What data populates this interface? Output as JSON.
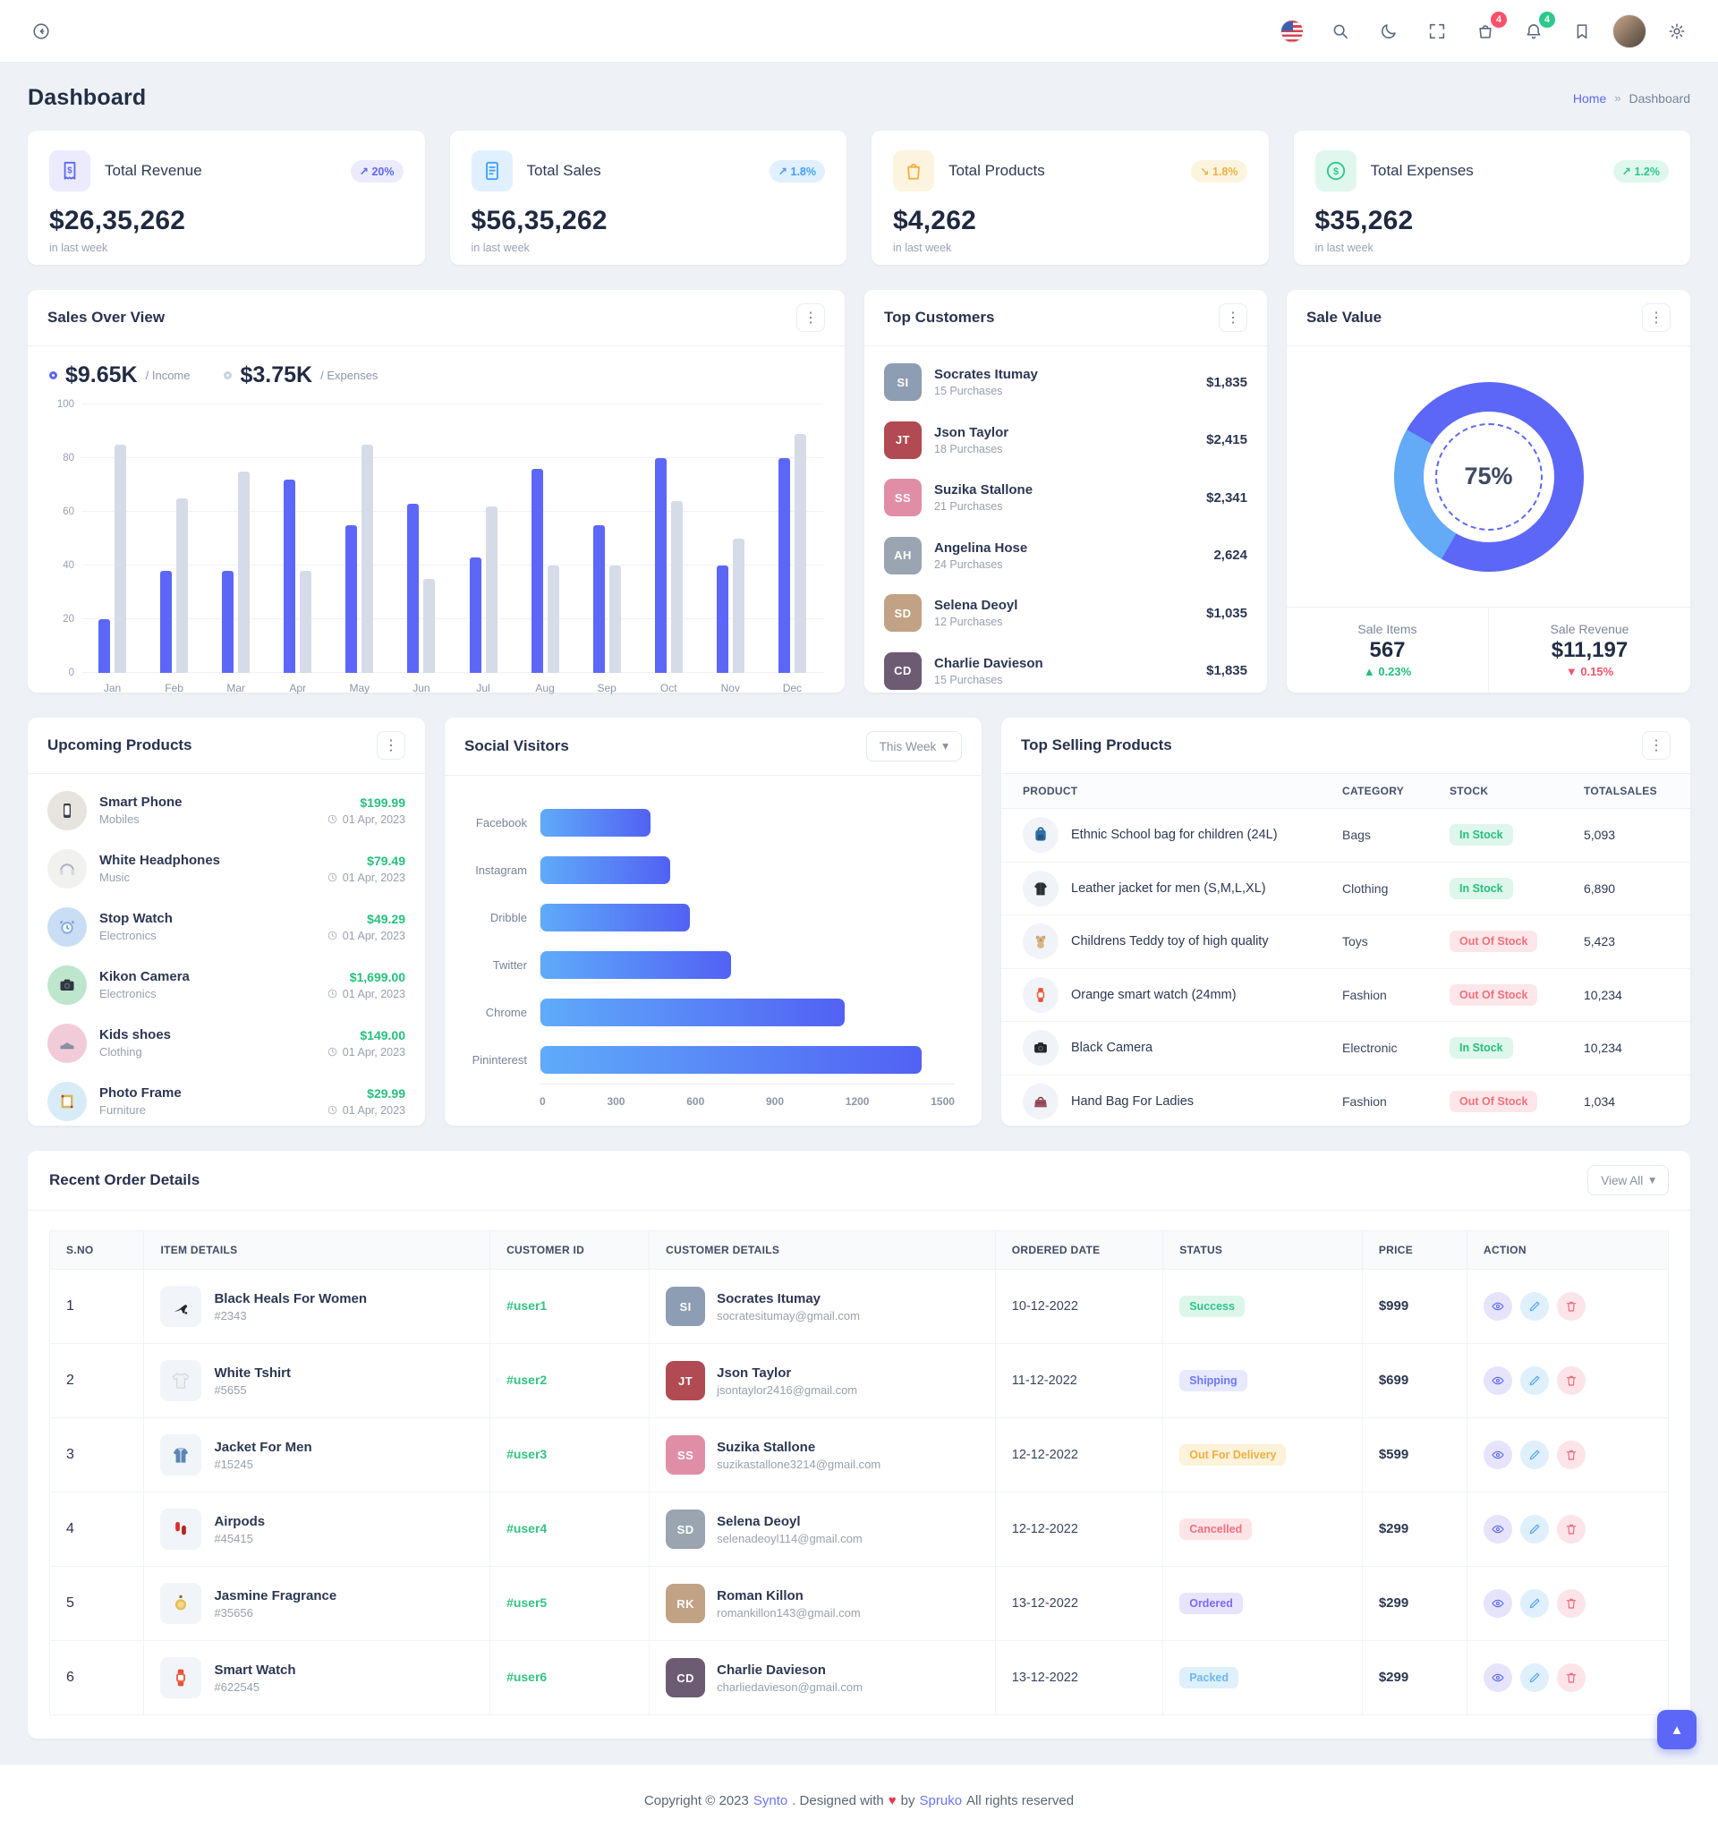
{
  "ui": {
    "icons": {
      "more": "⋮",
      "chevron_down": "▾",
      "heart": "♥",
      "arrow_up": "▲",
      "arrow_down": "▼",
      "trend_up": "↗",
      "trend_down": "↘",
      "breadcrumb_sep": "»",
      "scroll_top": "▲"
    }
  },
  "header": {
    "cart_badge": "4",
    "bell_badge": "4"
  },
  "page": {
    "title": "Dashboard",
    "breadcrumb": [
      "Home",
      "Dashboard"
    ]
  },
  "stats": [
    {
      "title": "Total Revenue",
      "badge": "20%",
      "trend": "up",
      "value": "$26,35,262",
      "caption": "in last week",
      "icon": "receipt-dollar",
      "theme": "indigo",
      "color": "#5c67f7"
    },
    {
      "title": "Total Sales",
      "badge": "1.8%",
      "trend": "up",
      "value": "$56,35,262",
      "caption": "in last week",
      "icon": "invoice",
      "theme": "blue",
      "color": "#41a0f6"
    },
    {
      "title": "Total Products",
      "badge": "1.8%",
      "trend": "down",
      "value": "$4,262",
      "caption": "in last week",
      "icon": "shopping-bag",
      "theme": "yellow",
      "color": "#f0b23f"
    },
    {
      "title": "Total Expenses",
      "badge": "1.2%",
      "trend": "up",
      "value": "$35,262",
      "caption": "in last week",
      "icon": "dollar-circle",
      "theme": "green",
      "color": "#2bc98a"
    }
  ],
  "sales_overview": {
    "title": "Sales Over View",
    "legend": [
      {
        "value": "$9.65K",
        "label": "/ Income"
      },
      {
        "value": "$3.75K",
        "label": "/ Expenses"
      }
    ]
  },
  "chart_data": [
    {
      "type": "bar",
      "title": "Sales Over View",
      "categories": [
        "Jan",
        "Feb",
        "Mar",
        "Apr",
        "May",
        "Jun",
        "Jul",
        "Aug",
        "Sep",
        "Oct",
        "Nov",
        "Dec"
      ],
      "series": [
        {
          "name": "Income",
          "color": "#5c67f7",
          "values": [
            20,
            38,
            38,
            72,
            55,
            63,
            43,
            76,
            55,
            80,
            40,
            80
          ]
        },
        {
          "name": "Expenses",
          "color": "#d5dbe7",
          "values": [
            85,
            65,
            75,
            38,
            85,
            35,
            62,
            40,
            40,
            64,
            50,
            89
          ]
        }
      ],
      "ylim": [
        0,
        100
      ],
      "yticks": [
        0,
        20,
        40,
        60,
        80,
        100
      ],
      "grid": true,
      "legend_position": "top-left"
    },
    {
      "type": "bar",
      "orientation": "horizontal",
      "title": "Social Visitors",
      "categories": [
        "Facebook",
        "Instagram",
        "Dribble",
        "Twitter",
        "Chrome",
        "Pininterest"
      ],
      "values": [
        400,
        470,
        540,
        690,
        1100,
        1380
      ],
      "xlim": [
        0,
        1500
      ],
      "xticks": [
        0,
        300,
        600,
        900,
        1200,
        1500
      ],
      "bar_gradient": [
        "#5fabf9",
        "#5261f3"
      ]
    },
    {
      "type": "donut",
      "title": "Sale Value",
      "center_label": "75%",
      "slices": [
        {
          "name": "primary",
          "value": 75,
          "color": "#5c67f7"
        },
        {
          "name": "secondary",
          "value": 25,
          "color": "#63aaf7"
        }
      ],
      "segments": [
        {
          "from": 0,
          "to": 210,
          "color": "#5c67f7"
        },
        {
          "from": 210,
          "to": 300,
          "color": "#63aaf7"
        },
        {
          "from": 300,
          "to": 360,
          "color": "#5c67f7"
        }
      ]
    }
  ],
  "top_customers": {
    "title": "Top Customers",
    "items": [
      {
        "name": "Socrates Itumay",
        "purchases": "15 Purchases",
        "amount": "$1,835"
      },
      {
        "name": "Json Taylor",
        "purchases": "18 Purchases",
        "amount": "$2,415"
      },
      {
        "name": "Suzika Stallone",
        "purchases": "21 Purchases",
        "amount": "$2,341"
      },
      {
        "name": "Angelina Hose",
        "purchases": "24 Purchases",
        "amount": "2,624"
      },
      {
        "name": "Selena Deoyl",
        "purchases": "12 Purchases",
        "amount": "$1,035"
      },
      {
        "name": "Charlie Davieson",
        "purchases": "15 Purchases",
        "amount": "$1,835"
      }
    ]
  },
  "sale_value": {
    "title": "Sale Value",
    "percent": "75%",
    "stats": [
      {
        "label": "Sale Items",
        "value": "567",
        "delta": "0.23%",
        "trend": "up"
      },
      {
        "label": "Sale Revenue",
        "value": "$11,197",
        "delta": "0.15%",
        "trend": "down"
      }
    ]
  },
  "upcoming_products": {
    "title": "Upcoming Products",
    "items": [
      {
        "name": "Smart Phone",
        "category": "Mobiles",
        "price": "$199.99",
        "date": "01 Apr, 2023",
        "icon": "smartphone",
        "icon_bg": "#e7e3de"
      },
      {
        "name": "White Headphones",
        "category": "Music",
        "price": "$79.49",
        "date": "01 Apr, 2023",
        "icon": "headphones",
        "icon_bg": "#f1f1ef"
      },
      {
        "name": "Stop Watch",
        "category": "Electronics",
        "price": "$49.29",
        "date": "01 Apr, 2023",
        "icon": "alarm-clock",
        "icon_bg": "#c9ddf5"
      },
      {
        "name": "Kikon Camera",
        "category": "Electronics",
        "price": "$1,699.00",
        "date": "01 Apr, 2023",
        "icon": "camera",
        "icon_bg": "#bde6cd"
      },
      {
        "name": "Kids shoes",
        "category": "Clothing",
        "price": "$149.00",
        "date": "01 Apr, 2023",
        "icon": "shoes",
        "icon_bg": "#f2cbd8"
      },
      {
        "name": "Photo Frame",
        "category": "Furniture",
        "price": "$29.99",
        "date": "01 Apr, 2023",
        "icon": "photo-frame",
        "icon_bg": "#d8ecf7"
      }
    ]
  },
  "social_visitors": {
    "title": "Social Visitors",
    "filter_label": "This Week"
  },
  "top_selling": {
    "title": "Top Selling Products",
    "columns": [
      "PRODUCT",
      "CATEGORY",
      "STOCK",
      "TOTALSALES"
    ],
    "rows": [
      {
        "product": "Ethnic School bag for children (24L)",
        "category": "Bags",
        "stock": "In Stock",
        "stock_state": "in",
        "sales": "5,093",
        "icon": "school-bag"
      },
      {
        "product": "Leather jacket for men (S,M,L,XL)",
        "category": "Clothing",
        "stock": "In Stock",
        "stock_state": "in",
        "sales": "6,890",
        "icon": "jacket-dark"
      },
      {
        "product": "Childrens Teddy toy of high quality",
        "category": "Toys",
        "stock": "Out Of Stock",
        "stock_state": "out",
        "sales": "5,423",
        "icon": "teddy"
      },
      {
        "product": "Orange smart watch (24mm)",
        "category": "Fashion",
        "stock": "Out Of Stock",
        "stock_state": "out",
        "sales": "10,234",
        "icon": "smart-watch"
      },
      {
        "product": "Black Camera",
        "category": "Electronic",
        "stock": "In Stock",
        "stock_state": "in",
        "sales": "10,234",
        "icon": "camera-dark"
      },
      {
        "product": "Hand Bag For Ladies",
        "category": "Fashion",
        "stock": "Out Of Stock",
        "stock_state": "out",
        "sales": "1,034",
        "icon": "handbag"
      }
    ]
  },
  "orders": {
    "title": "Recent Order Details",
    "view_all_label": "View All",
    "columns": [
      "S.NO",
      "ITEM DETAILS",
      "CUSTOMER ID",
      "CUSTOMER DETAILS",
      "ORDERED DATE",
      "STATUS",
      "PRICE",
      "ACTION"
    ],
    "rows": [
      {
        "sno": "1",
        "item": "Black Heals For Women",
        "item_id": "#2343",
        "customer_id": "#user1",
        "customer": "Socrates Itumay",
        "email": "socratesitumay@gmail.com",
        "date": "10-12-2022",
        "status": "Success",
        "status_type": "success",
        "price": "$999",
        "icon": "heels"
      },
      {
        "sno": "2",
        "item": "White Tshirt",
        "item_id": "#5655",
        "customer_id": "#user2",
        "customer": "Json Taylor",
        "email": "jsontaylor2416@gmail.com",
        "date": "11-12-2022",
        "status": "Shipping",
        "status_type": "shipping",
        "price": "$699",
        "icon": "tshirt"
      },
      {
        "sno": "3",
        "item": "Jacket For Men",
        "item_id": "#15245",
        "customer_id": "#user3",
        "customer": "Suzika Stallone",
        "email": "suzikastallone3214@gmail.com",
        "date": "12-12-2022",
        "status": "Out For Delivery",
        "status_type": "delivery",
        "price": "$599",
        "icon": "jacket-blue"
      },
      {
        "sno": "4",
        "item": "Airpods",
        "item_id": "#45415",
        "customer_id": "#user4",
        "customer": "Selena Deoyl",
        "email": "selenadeoyl114@gmail.com",
        "date": "12-12-2022",
        "status": "Cancelled",
        "status_type": "cancelled",
        "price": "$299",
        "icon": "airpods"
      },
      {
        "sno": "5",
        "item": "Jasmine Fragrance",
        "item_id": "#35656",
        "customer_id": "#user5",
        "customer": "Roman Killon",
        "email": "romankillon143@gmail.com",
        "date": "13-12-2022",
        "status": "Ordered",
        "status_type": "ordered",
        "price": "$299",
        "icon": "perfume"
      },
      {
        "sno": "6",
        "item": "Smart Watch",
        "item_id": "#622545",
        "customer_id": "#user6",
        "customer": "Charlie Davieson",
        "email": "charliedavieson@gmail.com",
        "date": "13-12-2022",
        "status": "Packed",
        "status_type": "packed",
        "price": "$299",
        "icon": "watch-red"
      }
    ]
  },
  "footer": {
    "prefix": "Copyright © 2023",
    "brand": "Synto",
    "middle": ". Designed with",
    "by": "by",
    "brand2": "Spruko",
    "suffix": "All rights reserved"
  }
}
